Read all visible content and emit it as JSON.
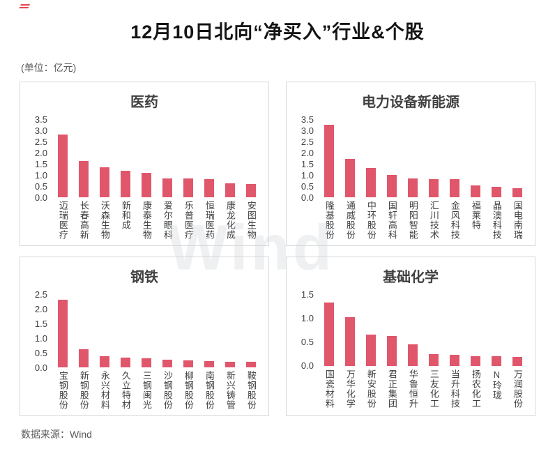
{
  "page": {
    "title": "12月10日北向“净买入”行业&个股",
    "unit_label": "(单位：亿元)",
    "source": "数据来源：Wind",
    "watermark": "Wind"
  },
  "colors": {
    "bar": "#e0566b",
    "accent_red": "#e0262d"
  },
  "chart_data": [
    {
      "type": "bar",
      "title": "医药",
      "categories": [
        "迈瑞医疗",
        "长春高新",
        "沃森生物",
        "新和成",
        "康泰生物",
        "爱尔眼科",
        "乐普医疗",
        "恒瑞医药",
        "康龙化成",
        "安图生物"
      ],
      "values": [
        2.82,
        1.62,
        1.35,
        1.2,
        1.1,
        0.85,
        0.85,
        0.8,
        0.62,
        0.6
      ],
      "ylim": [
        0,
        3.5
      ],
      "yticks": [
        0.0,
        0.5,
        1.0,
        1.5,
        2.0,
        2.5,
        3.0,
        3.5
      ],
      "xlabel": "",
      "ylabel": "",
      "grid": false,
      "legend": "none"
    },
    {
      "type": "bar",
      "title": "电力设备新能源",
      "categories": [
        "隆基股份",
        "通威股份",
        "中环股份",
        "国轩高科",
        "明阳智能",
        "汇川技术",
        "金风科技",
        "福莱特",
        "晶澳科技",
        "国电南瑞"
      ],
      "values": [
        3.25,
        1.72,
        1.3,
        1.0,
        0.85,
        0.8,
        0.8,
        0.53,
        0.47,
        0.4
      ],
      "ylim": [
        0,
        3.5
      ],
      "yticks": [
        0.0,
        0.5,
        1.0,
        1.5,
        2.0,
        2.5,
        3.0,
        3.5
      ],
      "xlabel": "",
      "ylabel": "",
      "grid": false,
      "legend": "none"
    },
    {
      "type": "bar",
      "title": "钢铁",
      "categories": [
        "宝钢股份",
        "新钢股份",
        "永兴材料",
        "久立特材",
        "三钢闽光",
        "沙钢股份",
        "柳钢股份",
        "南钢股份",
        "新兴铸管",
        "鞍钢股份"
      ],
      "values": [
        2.3,
        0.62,
        0.38,
        0.33,
        0.3,
        0.27,
        0.23,
        0.21,
        0.19,
        0.18
      ],
      "ylim": [
        0,
        2.5
      ],
      "yticks": [
        0.0,
        0.5,
        1.0,
        1.5,
        2.0,
        2.5
      ],
      "xlabel": "",
      "ylabel": "",
      "grid": false,
      "legend": "none"
    },
    {
      "type": "bar",
      "title": "基础化学",
      "categories": [
        "国瓷材料",
        "万华化学",
        "新安股份",
        "君正集团",
        "华鲁恒升",
        "三友化工",
        "当升科技",
        "扬农化工",
        "N玲珑",
        "万润股份"
      ],
      "values": [
        1.33,
        1.02,
        0.65,
        0.62,
        0.45,
        0.25,
        0.23,
        0.2,
        0.2,
        0.19
      ],
      "ylim": [
        0,
        1.5
      ],
      "yticks": [
        0.0,
        0.5,
        1.0,
        1.5
      ],
      "xlabel": "",
      "ylabel": "",
      "grid": false,
      "legend": "none"
    }
  ]
}
